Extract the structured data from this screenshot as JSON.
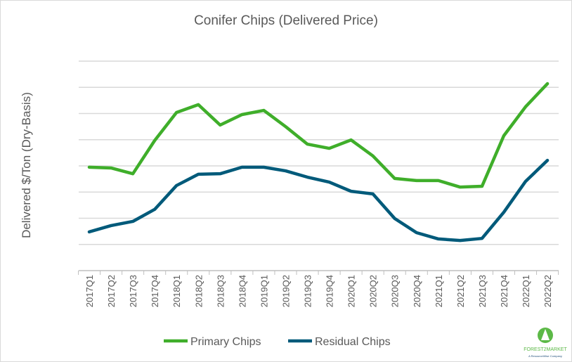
{
  "chart_data": {
    "type": "line",
    "title": "Conifer Chips (Delivered Price)",
    "xlabel": "",
    "ylabel": "Delivered $/Ton (Dry-Basis)",
    "y_tick_labels_shown": false,
    "ylim": [
      0,
      8
    ],
    "grid": true,
    "legend_placement": "bottom",
    "categories": [
      "2017Q1",
      "2017Q2",
      "2017Q3",
      "2017Q4",
      "2018Q1",
      "2018Q2",
      "2018Q3",
      "2018Q4",
      "2019Q1",
      "2019Q2",
      "2019Q3",
      "2019Q4",
      "2020Q1",
      "2020Q2",
      "2020Q3",
      "2020Q4",
      "2021Q1",
      "2021Q2",
      "2021Q3",
      "2021Q4",
      "2022Q1",
      "2022Q2"
    ],
    "series": [
      {
        "name": "Primary Chips",
        "color": "#3fae2a",
        "values": [
          3.95,
          3.92,
          3.7,
          4.97,
          6.04,
          6.34,
          5.56,
          5.96,
          6.12,
          5.5,
          4.83,
          4.67,
          4.99,
          4.38,
          3.52,
          3.44,
          3.44,
          3.19,
          3.22,
          5.15,
          6.26,
          7.14
        ]
      },
      {
        "name": "Residual Chips",
        "color": "#005a7a",
        "values": [
          1.48,
          1.72,
          1.88,
          2.34,
          3.25,
          3.68,
          3.7,
          3.95,
          3.95,
          3.81,
          3.57,
          3.38,
          3.03,
          2.93,
          1.99,
          1.45,
          1.21,
          1.15,
          1.23,
          2.23,
          3.41,
          4.21
        ]
      }
    ]
  },
  "logo": {
    "text": "FOREST2MARKET",
    "subtext": "A ResourceWise Company"
  }
}
